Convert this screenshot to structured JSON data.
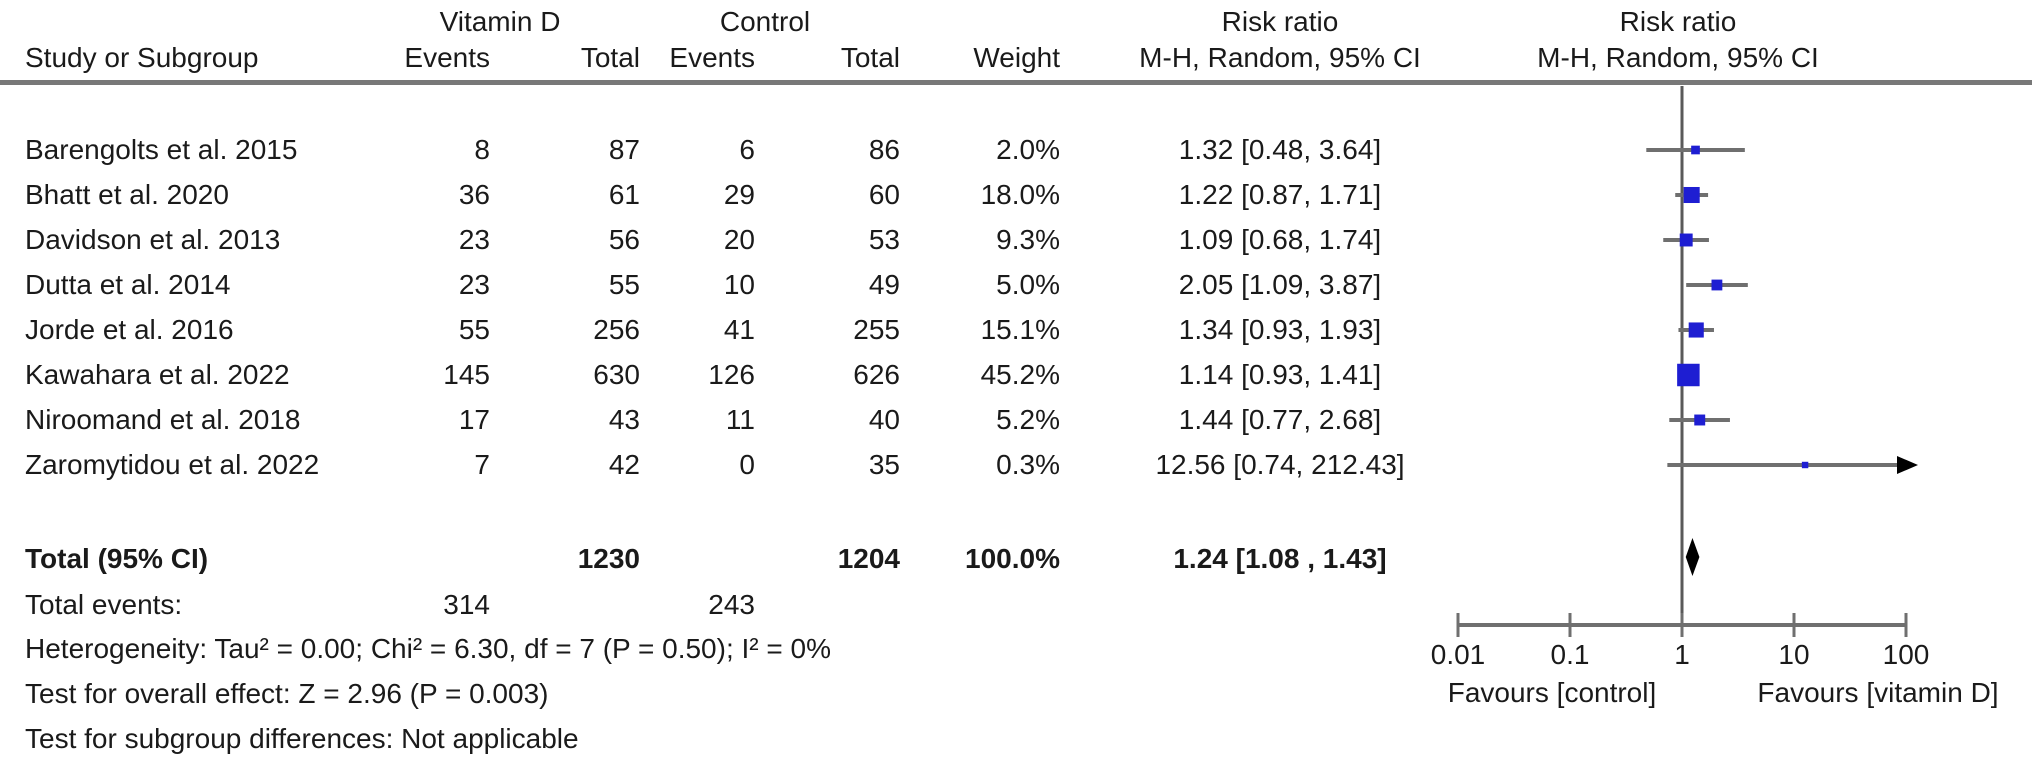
{
  "table": {
    "group_headers": {
      "vitamin_d": "Vitamin D",
      "control": "Control",
      "risk_ratio_text": "Risk ratio",
      "risk_ratio_plot": "Risk ratio"
    },
    "col_headers": {
      "study": "Study or Subgroup",
      "vd_events": "Events",
      "vd_total": "Total",
      "c_events": "Events",
      "c_total": "Total",
      "weight": "Weight",
      "mh_text": "M-H, Random, 95% CI",
      "mh_plot": "M-H, Random, 95% CI"
    },
    "studies": [
      {
        "name": "Barengolts et al. 2015",
        "vd_events": "8",
        "vd_total": "87",
        "c_events": "6",
        "c_total": "86",
        "weight": "2.0%",
        "rr_ci": "1.32 [0.48, 3.64]"
      },
      {
        "name": "Bhatt et al. 2020",
        "vd_events": "36",
        "vd_total": "61",
        "c_events": "29",
        "c_total": "60",
        "weight": "18.0%",
        "rr_ci": "1.22 [0.87, 1.71]"
      },
      {
        "name": "Davidson et al. 2013",
        "vd_events": "23",
        "vd_total": "56",
        "c_events": "20",
        "c_total": "53",
        "weight": "9.3%",
        "rr_ci": "1.09 [0.68, 1.74]"
      },
      {
        "name": "Dutta et al. 2014",
        "vd_events": "23",
        "vd_total": "55",
        "c_events": "10",
        "c_total": "49",
        "weight": "5.0%",
        "rr_ci": "2.05 [1.09, 3.87]"
      },
      {
        "name": "Jorde et al. 2016",
        "vd_events": "55",
        "vd_total": "256",
        "c_events": "41",
        "c_total": "255",
        "weight": "15.1%",
        "rr_ci": "1.34 [0.93, 1.93]"
      },
      {
        "name": "Kawahara et al. 2022",
        "vd_events": "145",
        "vd_total": "630",
        "c_events": "126",
        "c_total": "626",
        "weight": "45.2%",
        "rr_ci": "1.14 [0.93, 1.41]"
      },
      {
        "name": "Niroomand et al. 2018",
        "vd_events": "17",
        "vd_total": "43",
        "c_events": "11",
        "c_total": "40",
        "weight": "5.2%",
        "rr_ci": "1.44 [0.77, 2.68]"
      },
      {
        "name": "Zaromytidou et al. 2022",
        "vd_events": "7",
        "vd_total": "42",
        "c_events": "0",
        "c_total": "35",
        "weight": "0.3%",
        "rr_ci": "12.56 [0.74, 212.43]"
      }
    ],
    "total_row": {
      "label": "Total (95% CI)",
      "vd_total": "1230",
      "c_total": "1204",
      "weight": "100.0%",
      "rr_ci": "1.24 [1.08 , 1.43]"
    },
    "total_events": {
      "label": "Total events:",
      "vd": "314",
      "c": "243"
    },
    "footnotes": [
      "Heterogeneity: Tau² = 0.00; Chi² = 6.30, df = 7 (P = 0.50); I² = 0%",
      "Test for overall effect: Z = 2.96 (P = 0.003)",
      "Test for subgroup differences: Not applicable"
    ]
  },
  "chart_data": {
    "type": "forest",
    "effect_measure": "Risk ratio (M-H, Random, 95% CI)",
    "x_axis": {
      "scale": "log",
      "ticks": [
        0.01,
        0.1,
        1,
        10,
        100
      ],
      "tick_labels": [
        "0.01",
        "0.1",
        "1",
        "10",
        "100"
      ],
      "label_left": "Favours [control]",
      "label_right": "Favours [vitamin D]",
      "null_value": 1
    },
    "studies": [
      {
        "name": "Barengolts et al. 2015",
        "rr": 1.32,
        "ci_low": 0.48,
        "ci_high": 3.64,
        "weight_pct": 2.0
      },
      {
        "name": "Bhatt et al. 2020",
        "rr": 1.22,
        "ci_low": 0.87,
        "ci_high": 1.71,
        "weight_pct": 18.0
      },
      {
        "name": "Davidson et al. 2013",
        "rr": 1.09,
        "ci_low": 0.68,
        "ci_high": 1.74,
        "weight_pct": 9.3
      },
      {
        "name": "Dutta et al. 2014",
        "rr": 2.05,
        "ci_low": 1.09,
        "ci_high": 3.87,
        "weight_pct": 5.0
      },
      {
        "name": "Jorde et al. 2016",
        "rr": 1.34,
        "ci_low": 0.93,
        "ci_high": 1.93,
        "weight_pct": 15.1
      },
      {
        "name": "Kawahara et al. 2022",
        "rr": 1.14,
        "ci_low": 0.93,
        "ci_high": 1.41,
        "weight_pct": 45.2
      },
      {
        "name": "Niroomand et al. 2018",
        "rr": 1.44,
        "ci_low": 0.77,
        "ci_high": 2.68,
        "weight_pct": 5.2
      },
      {
        "name": "Zaromytidou et al. 2022",
        "rr": 12.56,
        "ci_low": 0.74,
        "ci_high": 212.43,
        "weight_pct": 0.3
      }
    ],
    "total": {
      "rr": 1.24,
      "ci_low": 1.08,
      "ci_high": 1.43,
      "weight_pct": 100.0
    }
  },
  "colors": {
    "marker_blue": "#1e1ed2",
    "line_gray": "#6f6f6f",
    "rule_gray": "#787878",
    "diamond_black": "#000000",
    "text": "#1a1a1a"
  }
}
